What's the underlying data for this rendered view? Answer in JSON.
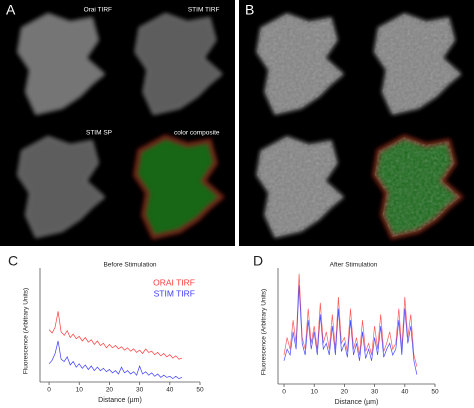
{
  "panels": [
    {
      "label": "A",
      "images": [
        "Orai TIRF",
        "STIM TIRF",
        "STIM SP",
        "color composite"
      ]
    },
    {
      "label": "B"
    }
  ],
  "chart_data": [
    {
      "type": "line",
      "panel_label": "C",
      "title": "Before Stimulation",
      "x_label": "Distance (µm)",
      "y_label": "Fluorescence (Arbitrary Units)",
      "x": [
        0,
        1,
        2,
        3,
        4,
        5,
        6,
        7,
        8,
        9,
        10,
        11,
        12,
        13,
        14,
        15,
        16,
        17,
        18,
        19,
        20,
        21,
        22,
        23,
        24,
        25,
        26,
        27,
        28,
        29,
        30,
        31,
        32,
        33,
        34,
        35,
        36,
        37,
        38,
        39,
        40,
        41,
        42,
        43,
        44
      ],
      "series": [
        {
          "name": "ORAI TIRF",
          "color": "#ff3b3b",
          "values": [
            4.6,
            4.3,
            4.8,
            6.2,
            4.4,
            4.1,
            4.5,
            3.9,
            4.2,
            3.8,
            4.0,
            3.6,
            3.9,
            3.5,
            3.7,
            3.3,
            3.6,
            3.2,
            3.4,
            3.0,
            3.3,
            3.0,
            3.2,
            2.9,
            3.1,
            2.8,
            3.0,
            2.7,
            2.9,
            2.6,
            2.8,
            2.5,
            2.9,
            2.6,
            2.7,
            2.4,
            2.6,
            2.3,
            2.5,
            2.2,
            2.4,
            2.1,
            2.3,
            2.0,
            2.1
          ]
        },
        {
          "name": "STIM TIRF",
          "color": "#3b3bff",
          "values": [
            1.6,
            1.9,
            2.5,
            3.6,
            2.0,
            1.8,
            2.2,
            1.5,
            1.8,
            1.3,
            1.6,
            1.2,
            1.5,
            1.1,
            1.4,
            1.0,
            1.3,
            1.0,
            1.2,
            0.9,
            1.1,
            0.8,
            1.0,
            0.7,
            1.3,
            0.8,
            1.0,
            0.7,
            0.9,
            0.6,
            1.4,
            0.7,
            0.9,
            0.6,
            0.8,
            0.5,
            0.7,
            0.4,
            0.6,
            0.4,
            0.5,
            0.3,
            0.5,
            0.3,
            0.4
          ]
        }
      ],
      "xlim": [
        -3,
        50
      ],
      "xticks": [
        0,
        10,
        20,
        30,
        40,
        50
      ],
      "ylim": [
        0,
        10
      ]
    },
    {
      "type": "line",
      "panel_label": "D",
      "title": "After Stimulation",
      "x_label": "Distance (µm)",
      "y_label": "Fluorescence (Arbitrary Units)",
      "x": [
        0,
        1,
        2,
        3,
        4,
        5,
        6,
        7,
        8,
        9,
        10,
        11,
        12,
        13,
        14,
        15,
        16,
        17,
        18,
        19,
        20,
        21,
        22,
        23,
        24,
        25,
        26,
        27,
        28,
        29,
        30,
        31,
        32,
        33,
        34,
        35,
        36,
        37,
        38,
        39,
        40,
        41,
        42,
        43,
        44
      ],
      "series": [
        {
          "color": "#ff5a5a",
          "values": [
            2.5,
            4.0,
            3.0,
            5.5,
            3.5,
            9.5,
            4.0,
            3.0,
            6.5,
            3.5,
            5.0,
            3.0,
            7.0,
            3.5,
            4.5,
            3.0,
            6.0,
            3.0,
            7.5,
            3.5,
            4.0,
            2.8,
            6.5,
            3.0,
            4.0,
            2.5,
            5.5,
            2.8,
            3.5,
            2.5,
            5.0,
            3.0,
            6.0,
            2.8,
            3.5,
            4.5,
            3.0,
            3.5,
            6.5,
            3.0,
            7.5,
            4.0,
            6.0,
            2.5,
            1.5
          ]
        },
        {
          "color": "#4a4aff",
          "values": [
            2.0,
            3.0,
            2.5,
            4.5,
            3.0,
            8.5,
            3.5,
            2.5,
            5.5,
            3.0,
            4.5,
            2.5,
            6.0,
            3.0,
            3.5,
            2.5,
            5.0,
            2.5,
            6.5,
            2.8,
            3.5,
            2.3,
            5.5,
            2.5,
            3.5,
            2.0,
            4.5,
            2.2,
            3.0,
            2.0,
            4.0,
            2.5,
            5.0,
            2.3,
            3.0,
            3.5,
            2.5,
            3.0,
            5.5,
            2.5,
            6.5,
            3.5,
            5.0,
            2.0,
            0.8
          ]
        }
      ],
      "xlim": [
        -2,
        50
      ],
      "xticks": [
        0,
        10,
        20,
        30,
        40,
        50
      ],
      "ylim": [
        0,
        10
      ]
    }
  ]
}
